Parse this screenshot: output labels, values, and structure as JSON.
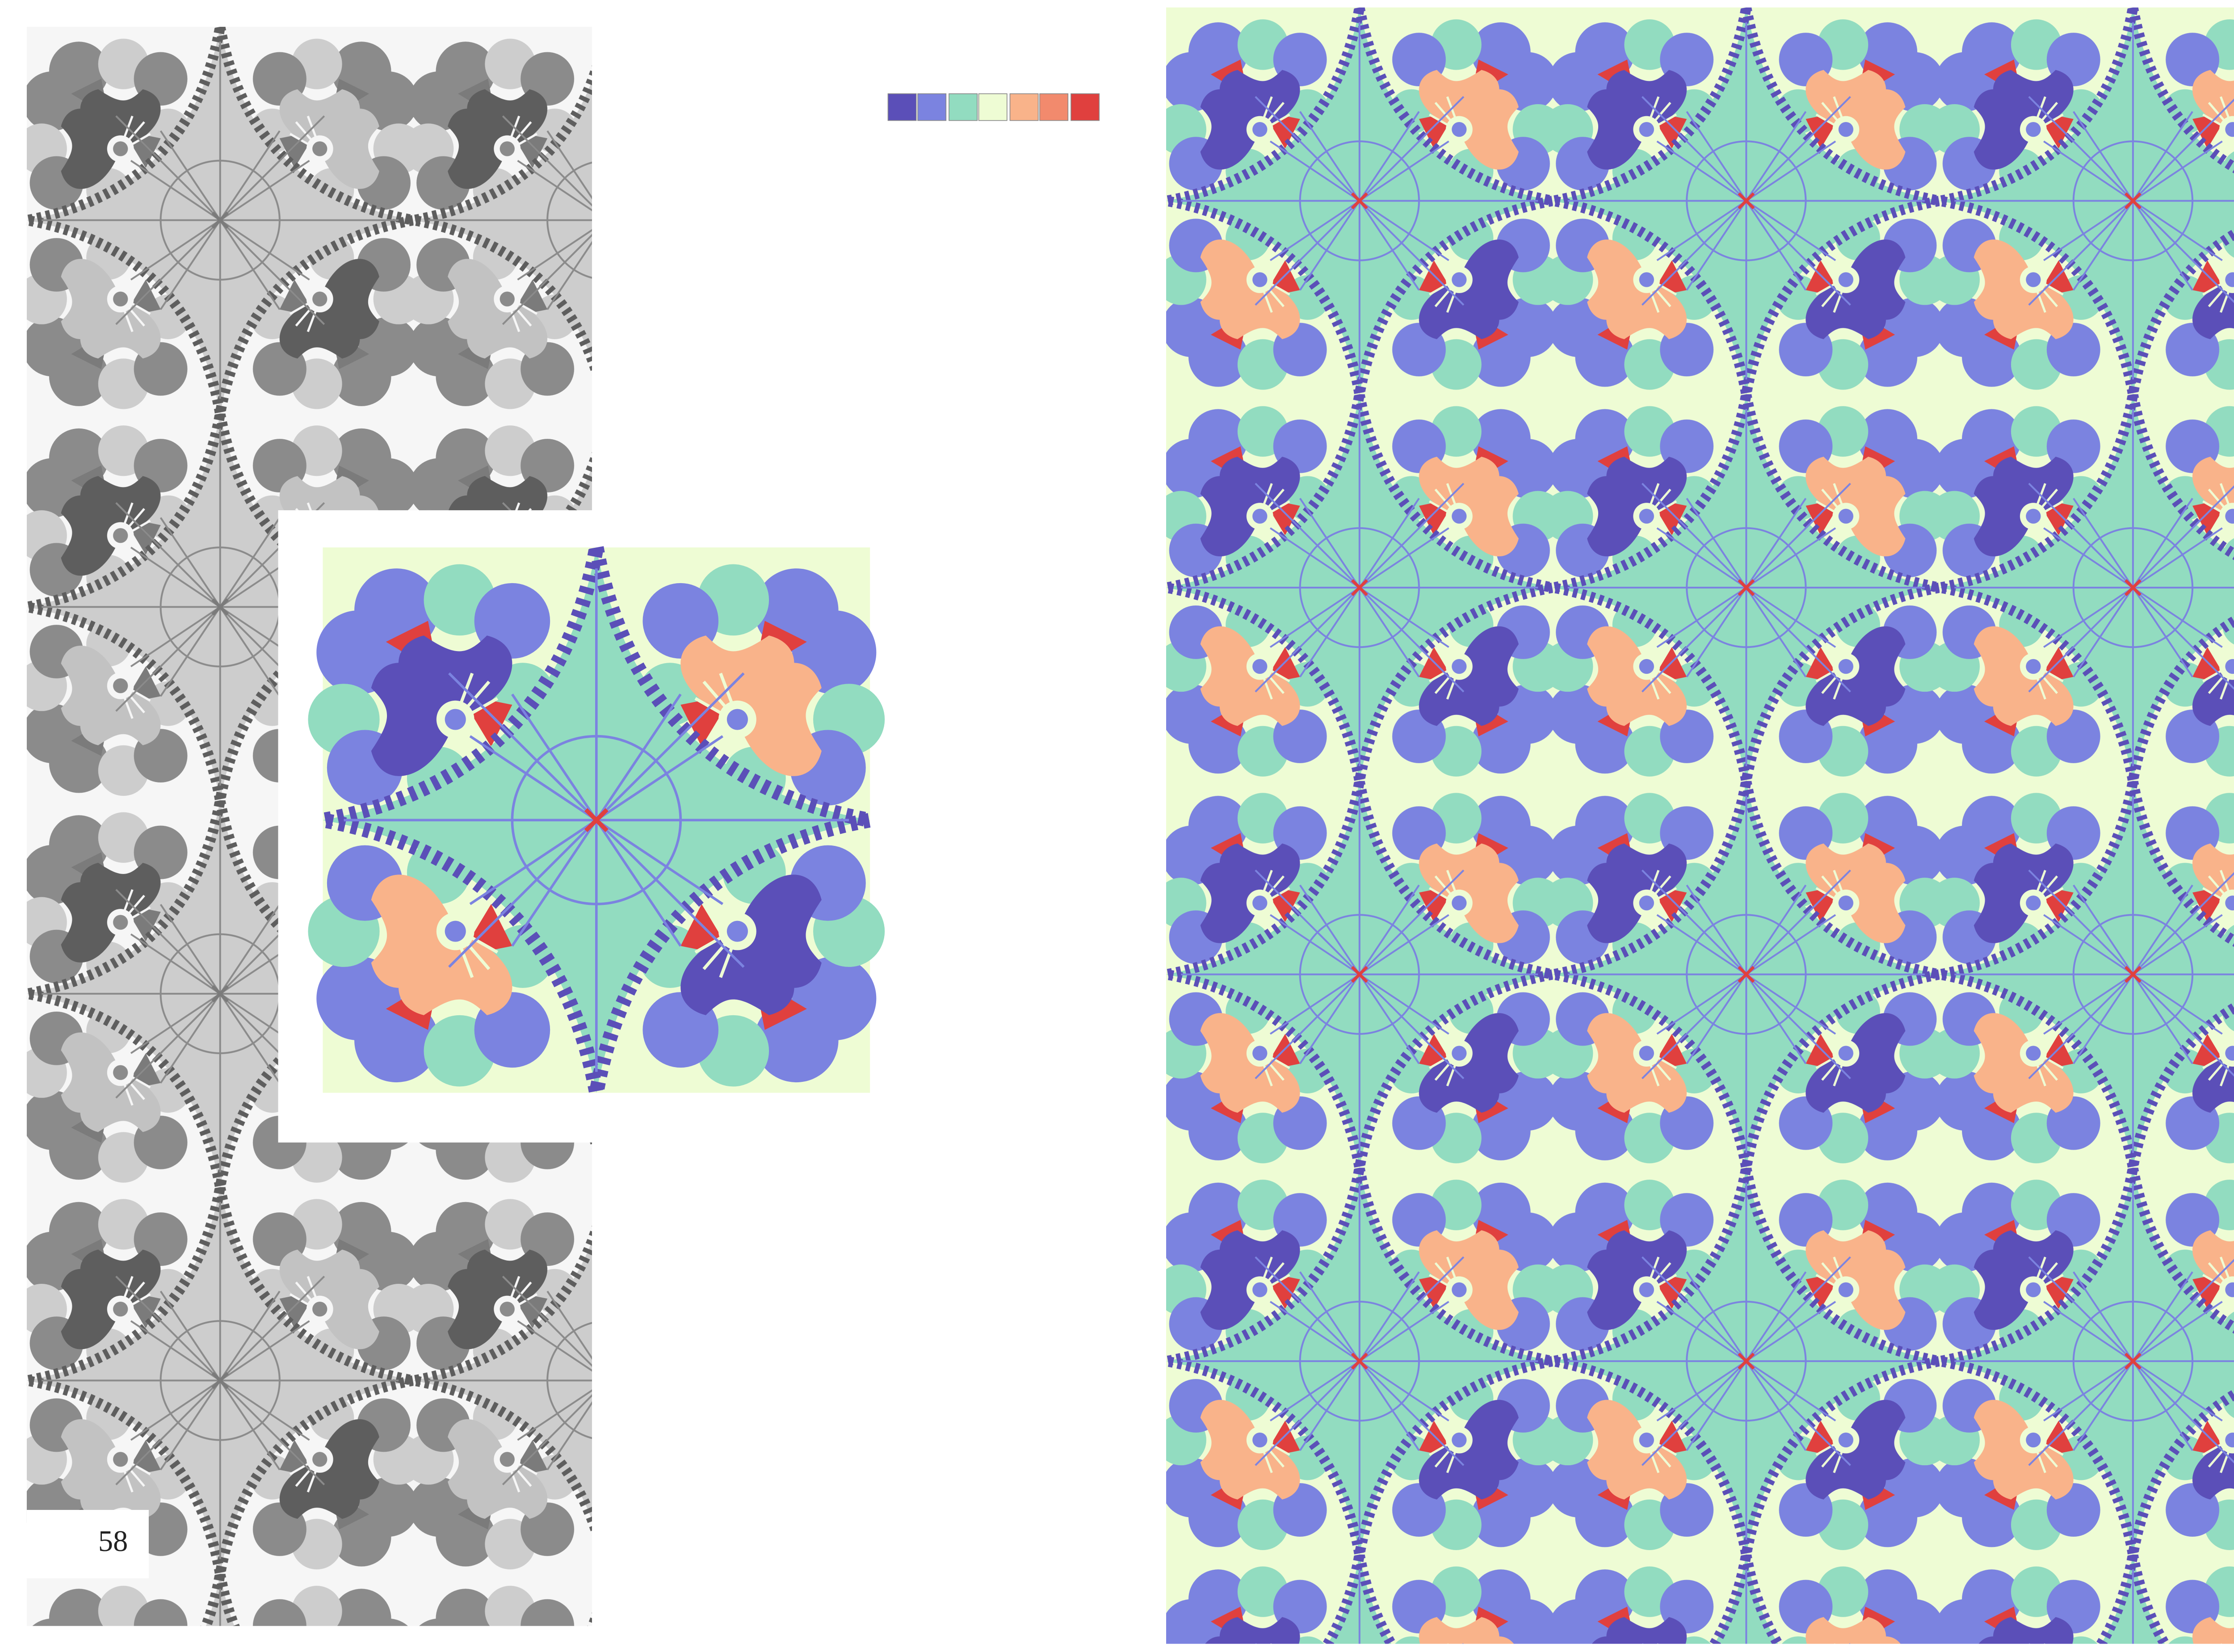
{
  "page": {
    "number": "58"
  }
}
